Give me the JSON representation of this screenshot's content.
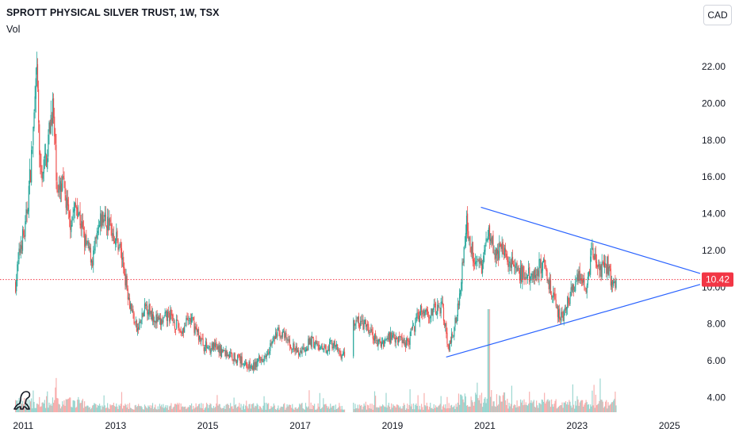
{
  "header": {
    "title": "SPROTT PHYSICAL SILVER TRUST, 1W, TSX",
    "volume_label": "Vol",
    "currency_button": "CAD"
  },
  "colors": {
    "up": "#26a69a",
    "down": "#ef5350",
    "trendline": "#2962ff",
    "price_line": "#f23645",
    "price_badge": "#f23645"
  },
  "chart_data": {
    "type": "candlestick",
    "title": "SPROTT PHYSICAL SILVER TRUST, 1W, TSX",
    "x_axis": {
      "type": "date",
      "range": [
        "2010-07-01",
        "2025-09-01"
      ],
      "ticks": [
        "2011",
        "2013",
        "2015",
        "2017",
        "2019",
        "2021",
        "2023",
        "2025"
      ]
    },
    "y_axis": {
      "range": [
        3.2,
        23.9
      ],
      "ticks": [
        "4.00",
        "6.00",
        "8.00",
        "10.00",
        "12.00",
        "14.00",
        "16.00",
        "18.00",
        "20.00",
        "22.00"
      ],
      "position": "right"
    },
    "last_price": 10.42,
    "last_price_label": "10.42",
    "price_anchors": [
      [
        "2010-11-01",
        10.2
      ],
      [
        "2010-12-15",
        12.5
      ],
      [
        "2011-01-15",
        13.0
      ],
      [
        "2011-03-01",
        16.5
      ],
      [
        "2011-04-20",
        21.5
      ],
      [
        "2011-05-15",
        16.0
      ],
      [
        "2011-07-01",
        17.0
      ],
      [
        "2011-08-20",
        20.0
      ],
      [
        "2011-10-01",
        15.0
      ],
      [
        "2011-11-15",
        15.5
      ],
      [
        "2012-01-01",
        13.5
      ],
      [
        "2012-03-01",
        14.5
      ],
      [
        "2012-05-01",
        12.5
      ],
      [
        "2012-07-01",
        11.5
      ],
      [
        "2012-09-15",
        13.8
      ],
      [
        "2012-11-01",
        13.5
      ],
      [
        "2013-02-01",
        12.3
      ],
      [
        "2013-04-20",
        9.3
      ],
      [
        "2013-06-20",
        7.6
      ],
      [
        "2013-09-01",
        9.0
      ],
      [
        "2013-12-15",
        8.0
      ],
      [
        "2014-03-01",
        8.5
      ],
      [
        "2014-06-01",
        7.6
      ],
      [
        "2014-08-15",
        8.3
      ],
      [
        "2014-12-01",
        6.8
      ],
      [
        "2015-03-01",
        6.7
      ],
      [
        "2015-06-01",
        6.4
      ],
      [
        "2015-09-01",
        6.1
      ],
      [
        "2015-12-15",
        5.6
      ],
      [
        "2016-03-01",
        6.1
      ],
      [
        "2016-07-15",
        7.6
      ],
      [
        "2016-10-01",
        7.0
      ],
      [
        "2016-12-15",
        6.4
      ],
      [
        "2017-04-01",
        7.1
      ],
      [
        "2017-07-01",
        6.5
      ],
      [
        "2017-09-01",
        7.0
      ],
      [
        "2017-12-01",
        6.3
      ],
      [
        "2018-01-15",
        6.5
      ],
      [
        "2018-03-01",
        8.2
      ],
      [
        "2018-06-01",
        7.9
      ],
      [
        "2018-09-15",
        6.9
      ],
      [
        "2019-01-01",
        7.4
      ],
      [
        "2019-05-01",
        7.0
      ],
      [
        "2019-08-15",
        8.8
      ],
      [
        "2019-11-01",
        8.6
      ],
      [
        "2020-02-01",
        9.0
      ],
      [
        "2020-03-20",
        6.5
      ],
      [
        "2020-06-01",
        8.8
      ],
      [
        "2020-08-10",
        13.5
      ],
      [
        "2020-09-20",
        12.0
      ],
      [
        "2020-12-01",
        11.0
      ],
      [
        "2021-02-01",
        13.2
      ],
      [
        "2021-04-01",
        11.8
      ],
      [
        "2021-06-01",
        12.0
      ],
      [
        "2021-09-15",
        10.8
      ],
      [
        "2021-12-01",
        10.5
      ],
      [
        "2022-04-15",
        11.3
      ],
      [
        "2022-07-15",
        8.9
      ],
      [
        "2022-09-01",
        8.4
      ],
      [
        "2023-02-01",
        10.8
      ],
      [
        "2023-03-01",
        9.8
      ],
      [
        "2023-05-01",
        11.9
      ],
      [
        "2023-07-01",
        10.8
      ],
      [
        "2023-09-01",
        11.3
      ],
      [
        "2023-10-01",
        10.1
      ],
      [
        "2023-11-10",
        10.42
      ]
    ],
    "trendlines": [
      {
        "from": [
          "2020-12-01",
          14.35
        ],
        "to": [
          "2025-09-01",
          10.75
        ]
      },
      {
        "from": [
          "2020-03-01",
          6.2
        ],
        "to": [
          "2025-09-01",
          10.15
        ]
      }
    ],
    "grid": false,
    "volume_panel": true,
    "price_line_style": "dotted"
  }
}
